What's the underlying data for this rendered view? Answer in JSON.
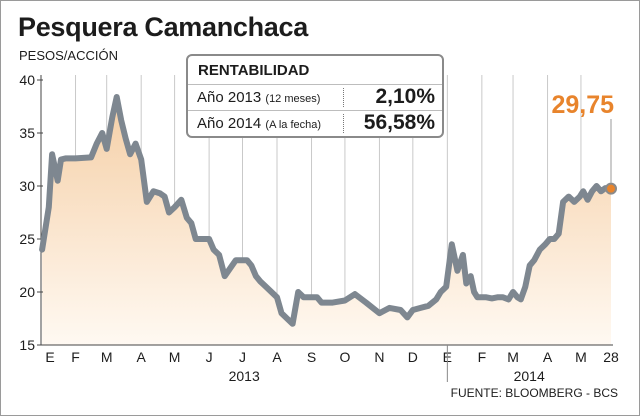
{
  "title": "Pesquera Camanchaca",
  "y_axis_label": "PESOS/ACCIÓN",
  "source": "FUENTE: BLOOMBERG - BCS",
  "colors": {
    "line": "#7e8790",
    "area_top": "#f5cfa6",
    "area_bottom": "#fff9f2",
    "accent": "#e8842c",
    "grid": "#c9c9c9"
  },
  "rentabilidad": {
    "title": "RENTABILIDAD",
    "rows": [
      {
        "label": "Año 2013",
        "note": "(12 meses)",
        "value": "2,10%"
      },
      {
        "label": "Año 2014",
        "note": "(A la fecha)",
        "value": "56,58%"
      }
    ]
  },
  "chart_data": {
    "type": "area",
    "y_ticks": [
      "40",
      "35",
      "30",
      "25",
      "20",
      "15"
    ],
    "ylim": [
      15,
      40
    ],
    "x_ticks": [
      "E",
      "F",
      "M",
      "A",
      "M",
      "J",
      "J",
      "A",
      "S",
      "O",
      "N",
      "D",
      "E",
      "F",
      "M",
      "A",
      "M",
      "28"
    ],
    "years": [
      "2013",
      "2014"
    ],
    "grid": "vertical month lines",
    "last_value": 29.75,
    "last_value_label": "29,75",
    "x": [
      "2013-01-02",
      "2013-01-08",
      "2013-01-11",
      "2013-01-16",
      "2013-01-19",
      "2013-01-23",
      "2013-02-01",
      "2013-02-15",
      "2013-02-20",
      "2013-02-25",
      "2013-03-01",
      "2013-03-06",
      "2013-03-10",
      "2013-03-14",
      "2013-03-18",
      "2013-03-22",
      "2013-03-27",
      "2013-04-01",
      "2013-04-06",
      "2013-04-12",
      "2013-04-18",
      "2013-04-22",
      "2013-04-26",
      "2013-05-01",
      "2013-05-07",
      "2013-05-12",
      "2013-05-16",
      "2013-05-20",
      "2013-05-24",
      "2013-05-28",
      "2013-06-01",
      "2013-06-05",
      "2013-06-10",
      "2013-06-15",
      "2013-06-25",
      "2013-07-05",
      "2013-07-09",
      "2013-07-13",
      "2013-07-17",
      "2013-07-22",
      "2013-08-01",
      "2013-08-05",
      "2013-08-10",
      "2013-08-15",
      "2013-08-20",
      "2013-08-25",
      "2013-08-29",
      "2013-09-02",
      "2013-09-06",
      "2013-09-10",
      "2013-09-15",
      "2013-09-20",
      "2013-10-01",
      "2013-10-10",
      "2013-10-20",
      "2013-11-01",
      "2013-11-10",
      "2013-11-20",
      "2013-11-26",
      "2013-12-01",
      "2013-12-08",
      "2013-12-15",
      "2013-12-22",
      "2013-12-26",
      "2013-12-31",
      "2014-01-05",
      "2014-01-10",
      "2014-01-15",
      "2014-01-18",
      "2014-01-22",
      "2014-01-25",
      "2014-01-28",
      "2014-02-01",
      "2014-02-05",
      "2014-02-10",
      "2014-02-15",
      "2014-02-20",
      "2014-02-25",
      "2014-03-01",
      "2014-03-05",
      "2014-03-08",
      "2014-03-12",
      "2014-03-16",
      "2014-03-20",
      "2014-03-25",
      "2014-03-30",
      "2014-04-03",
      "2014-04-07",
      "2014-04-11",
      "2014-04-15",
      "2014-04-20",
      "2014-04-25",
      "2014-04-30",
      "2014-05-03",
      "2014-05-07",
      "2014-05-11",
      "2014-05-15",
      "2014-05-19",
      "2014-05-23",
      "2014-05-28"
    ],
    "values": [
      24.0,
      28.0,
      33.0,
      30.5,
      32.5,
      32.6,
      32.6,
      32.7,
      34.0,
      35.0,
      33.5,
      36.5,
      38.4,
      36.2,
      34.5,
      33.0,
      34.0,
      32.5,
      28.5,
      29.5,
      29.3,
      29.0,
      27.5,
      28.0,
      28.7,
      27.0,
      26.5,
      25.0,
      25.0,
      25.0,
      25.0,
      24.0,
      23.5,
      21.5,
      23.0,
      23.0,
      22.5,
      21.5,
      21.0,
      20.5,
      19.5,
      18.0,
      17.5,
      17.0,
      20.0,
      19.5,
      19.5,
      19.5,
      19.5,
      19.0,
      19.0,
      19.0,
      19.2,
      19.8,
      19.0,
      18.0,
      18.5,
      18.3,
      17.6,
      18.3,
      18.5,
      18.7,
      19.3,
      20.0,
      20.5,
      24.5,
      22.0,
      23.5,
      20.8,
      21.5,
      20.0,
      19.5,
      19.5,
      19.5,
      19.4,
      19.5,
      19.5,
      19.3,
      20.0,
      19.5,
      19.3,
      20.5,
      22.5,
      23.0,
      24.0,
      24.5,
      25.0,
      25.0,
      25.5,
      28.5,
      29.0,
      28.5,
      29.0,
      29.5,
      28.7,
      29.5,
      30.0,
      29.5,
      29.8,
      29.75
    ]
  }
}
